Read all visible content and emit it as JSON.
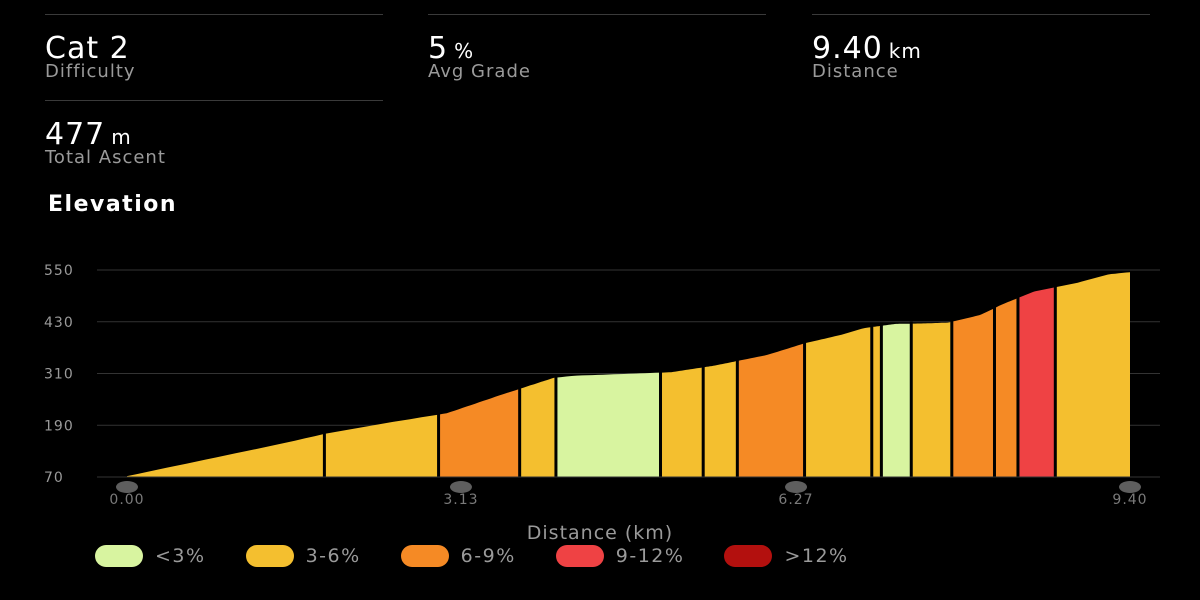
{
  "stats": {
    "difficulty": {
      "value": "Cat 2",
      "unit": "",
      "label": "Difficulty"
    },
    "avg_grade": {
      "value": "5",
      "unit": "%",
      "label": "Avg Grade"
    },
    "distance": {
      "value": "9.40",
      "unit": "km",
      "label": "Distance"
    },
    "total_ascent": {
      "value": "477",
      "unit": "m",
      "label": "Total Ascent"
    }
  },
  "section_title": "Elevation",
  "legend": [
    {
      "label": "<3%",
      "color": "#d8f4a0"
    },
    {
      "label": "3-6%",
      "color": "#f4bf2f"
    },
    {
      "label": "6-9%",
      "color": "#f58a25"
    },
    {
      "label": "9-12%",
      "color": "#ef4244"
    },
    {
      "label": ">12%",
      "color": "#b3100e"
    }
  ],
  "chart_data": {
    "type": "area",
    "title": "Elevation",
    "xlabel": "Distance (km)",
    "ylabel": "",
    "xlim": [
      0,
      9.4
    ],
    "ylim": [
      70,
      550
    ],
    "xticks": [
      "0.00",
      "3.13",
      "6.27",
      "9.40"
    ],
    "xtick_values": [
      0,
      3.13,
      6.27,
      9.4
    ],
    "yticks": [
      70,
      190,
      310,
      430,
      550
    ],
    "grid": true,
    "legend_position": "bottom",
    "profile": {
      "x": [
        0,
        0.5,
        1.0,
        1.5,
        1.85,
        2.5,
        3.0,
        3.5,
        4.0,
        4.2,
        4.55,
        5.0,
        5.1,
        5.5,
        6.0,
        6.35,
        6.7,
        6.9,
        7.2,
        7.45,
        7.7,
        8.0,
        8.2,
        8.5,
        8.9,
        9.2,
        9.4
      ],
      "elevation": [
        72,
        98,
        124,
        150,
        170,
        198,
        218,
        260,
        300,
        305,
        308,
        312,
        313,
        328,
        353,
        380,
        400,
        415,
        425,
        426,
        428,
        446,
        470,
        500,
        520,
        540,
        545
      ]
    },
    "segments": [
      {
        "start": 0.0,
        "end": 1.85,
        "grade_class": "3-6%"
      },
      {
        "start": 1.85,
        "end": 2.92,
        "grade_class": "3-6%"
      },
      {
        "start": 2.92,
        "end": 3.68,
        "grade_class": "6-9%"
      },
      {
        "start": 3.68,
        "end": 4.02,
        "grade_class": "3-6%"
      },
      {
        "start": 4.02,
        "end": 5.0,
        "grade_class": "<3%"
      },
      {
        "start": 5.0,
        "end": 5.4,
        "grade_class": "3-6%"
      },
      {
        "start": 5.4,
        "end": 5.72,
        "grade_class": "3-6%"
      },
      {
        "start": 5.72,
        "end": 6.35,
        "grade_class": "6-9%"
      },
      {
        "start": 6.35,
        "end": 6.98,
        "grade_class": "3-6%"
      },
      {
        "start": 6.98,
        "end": 7.07,
        "grade_class": "3-6%"
      },
      {
        "start": 7.07,
        "end": 7.35,
        "grade_class": "<3%"
      },
      {
        "start": 7.35,
        "end": 7.73,
        "grade_class": "3-6%"
      },
      {
        "start": 7.73,
        "end": 8.13,
        "grade_class": "6-9%"
      },
      {
        "start": 8.13,
        "end": 8.35,
        "grade_class": "6-9%"
      },
      {
        "start": 8.35,
        "end": 8.7,
        "grade_class": "9-12%"
      },
      {
        "start": 8.7,
        "end": 9.4,
        "grade_class": "3-6%"
      }
    ]
  }
}
